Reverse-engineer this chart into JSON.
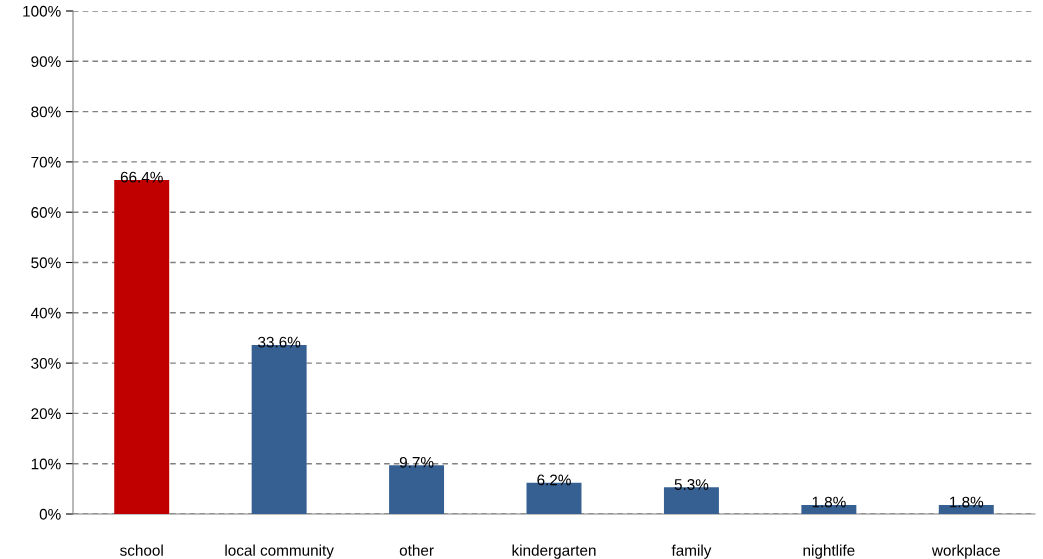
{
  "chart_data": {
    "type": "bar",
    "categories": [
      "school",
      "local community",
      "other",
      "kindergarten",
      "family",
      "nightlife",
      "workplace"
    ],
    "values": [
      66.4,
      33.6,
      9.7,
      6.2,
      5.3,
      1.8,
      1.8
    ],
    "colors": [
      "#c00000",
      "#376092",
      "#376092",
      "#376092",
      "#376092",
      "#376092",
      "#376092"
    ],
    "value_labels": [
      "66.4%",
      "33.6%",
      "9.7%",
      "6.2%",
      "5.3%",
      "1.8%",
      "1.8%"
    ],
    "ylim": [
      0,
      100
    ],
    "yticks": [
      {
        "value": 0,
        "label": "0%"
      },
      {
        "value": 10,
        "label": "10%"
      },
      {
        "value": 20,
        "label": "20%"
      },
      {
        "value": 30,
        "label": "30%"
      },
      {
        "value": 40,
        "label": "40%"
      },
      {
        "value": 50,
        "label": "50%"
      },
      {
        "value": 60,
        "label": "60%"
      },
      {
        "value": 70,
        "label": "70%"
      },
      {
        "value": 80,
        "label": "80%"
      },
      {
        "value": 90,
        "label": "90%"
      },
      {
        "value": 100,
        "label": "100%"
      }
    ],
    "grid": "y",
    "legend": false
  }
}
